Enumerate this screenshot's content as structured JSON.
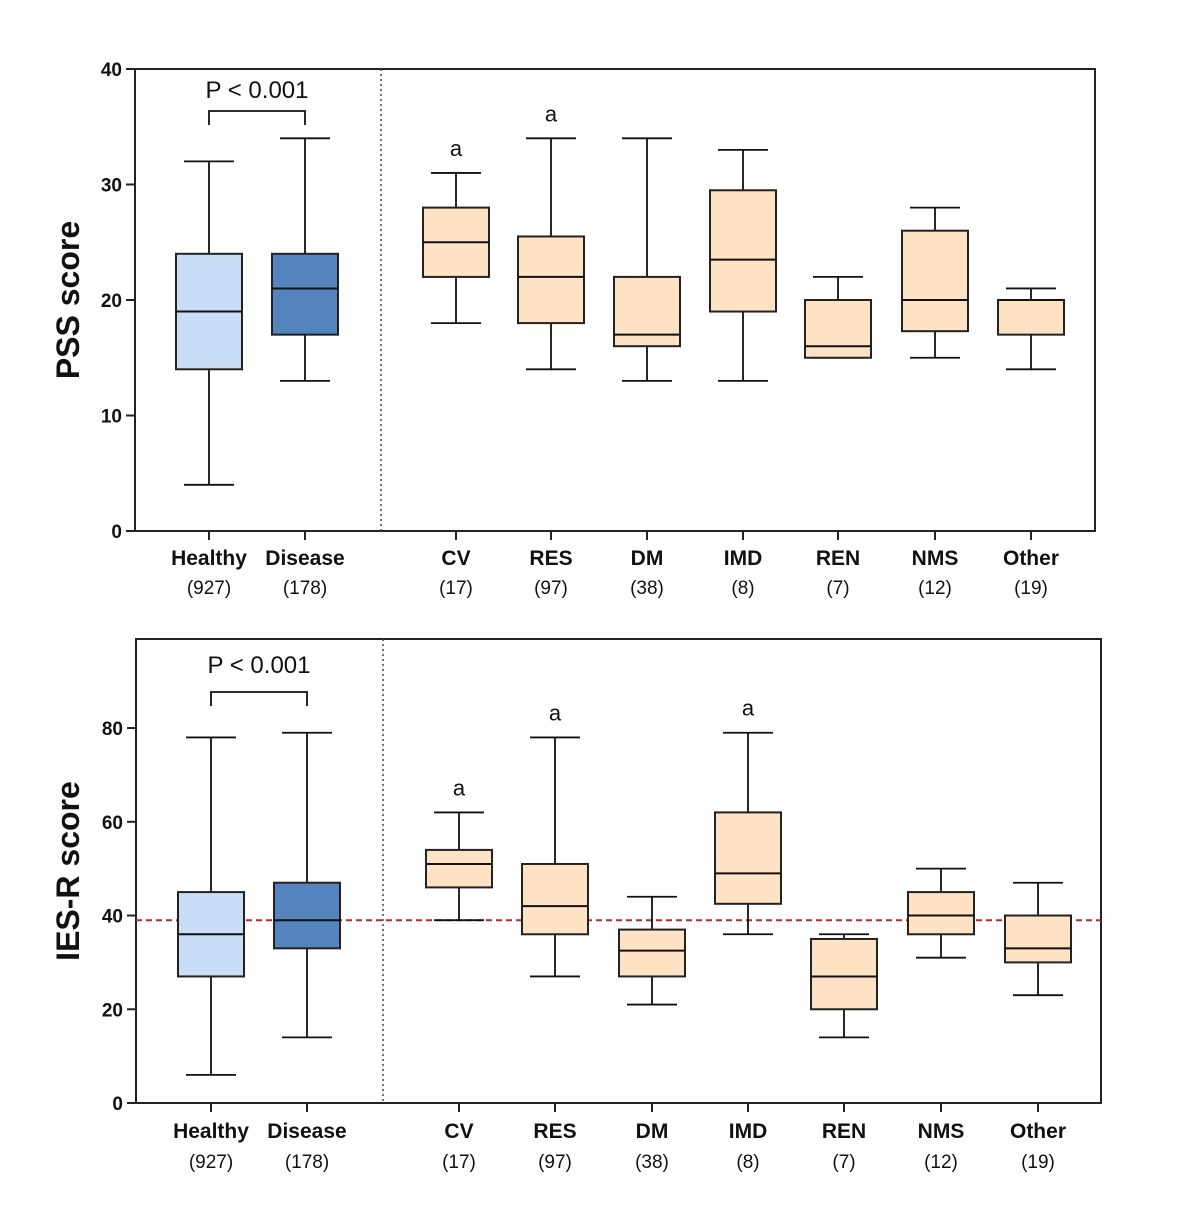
{
  "chart_data": [
    {
      "type": "box",
      "title": "",
      "ylabel": "PSS score",
      "xlabel": "",
      "ylim": [
        0,
        40
      ],
      "yticks": [
        0,
        10,
        20,
        30,
        40
      ],
      "grid": false,
      "comparison": {
        "groups": [
          "Healthy",
          "Disease"
        ],
        "label": "P < 0.001"
      },
      "reference_line": null,
      "categories": [
        {
          "name": "Healthy",
          "n": "(927)",
          "color": "#C9DDF6",
          "min": 4,
          "q1": 14,
          "median": 19,
          "q3": 24,
          "max": 32,
          "sig": ""
        },
        {
          "name": "Disease",
          "n": "(178)",
          "color": "#5483BE",
          "min": 13,
          "q1": 17,
          "median": 21,
          "q3": 24,
          "max": 34,
          "sig": ""
        },
        {
          "name": "CV",
          "n": "(17)",
          "color": "#FFE2C4",
          "min": 18,
          "q1": 22,
          "median": 25,
          "q3": 28,
          "max": 31,
          "sig": "a"
        },
        {
          "name": "RES",
          "n": "(97)",
          "color": "#FFE2C4",
          "min": 14,
          "q1": 18,
          "median": 22,
          "q3": 25.5,
          "max": 34,
          "sig": "a"
        },
        {
          "name": "DM",
          "n": "(38)",
          "color": "#FFE2C4",
          "min": 13,
          "q1": 16,
          "median": 17,
          "q3": 22,
          "max": 34,
          "sig": ""
        },
        {
          "name": "IMD",
          "n": "(8)",
          "color": "#FFE2C4",
          "min": 13,
          "q1": 19,
          "median": 23.5,
          "q3": 29.5,
          "max": 33,
          "sig": ""
        },
        {
          "name": "REN",
          "n": "(7)",
          "color": "#FFE2C4",
          "min": 15,
          "q1": 15,
          "median": 16,
          "q3": 20,
          "max": 22,
          "sig": ""
        },
        {
          "name": "NMS",
          "n": "(12)",
          "color": "#FFE2C4",
          "min": 15,
          "q1": 17.3,
          "median": 20,
          "q3": 26,
          "max": 28,
          "sig": ""
        },
        {
          "name": "Other",
          "n": "(19)",
          "color": "#FFE2C4",
          "min": 14,
          "q1": 17,
          "median": 20,
          "q3": 20,
          "max": 21,
          "sig": ""
        }
      ]
    },
    {
      "type": "box",
      "title": "",
      "ylabel": "IES-R score",
      "xlabel": "",
      "ylim": [
        0,
        99
      ],
      "yticks": [
        0,
        20,
        40,
        60,
        80
      ],
      "grid": false,
      "comparison": {
        "groups": [
          "Healthy",
          "Disease"
        ],
        "label": "P < 0.001"
      },
      "reference_line": {
        "value": 39,
        "style": "dashed",
        "color": "#C0282D"
      },
      "categories": [
        {
          "name": "Healthy",
          "n": "(927)",
          "color": "#C9DDF6",
          "min": 6,
          "q1": 27,
          "median": 36,
          "q3": 45,
          "max": 78,
          "sig": ""
        },
        {
          "name": "Disease",
          "n": "(178)",
          "color": "#5483BE",
          "min": 14,
          "q1": 33,
          "median": 39,
          "q3": 47,
          "max": 79,
          "sig": ""
        },
        {
          "name": "CV",
          "n": "(17)",
          "color": "#FFE2C4",
          "min": 39,
          "q1": 46,
          "median": 51,
          "q3": 54,
          "max": 62,
          "sig": "a"
        },
        {
          "name": "RES",
          "n": "(97)",
          "color": "#FFE2C4",
          "min": 27,
          "q1": 36,
          "median": 42,
          "q3": 51,
          "max": 78,
          "sig": "a"
        },
        {
          "name": "DM",
          "n": "(38)",
          "color": "#FFE2C4",
          "min": 21,
          "q1": 27,
          "median": 32.5,
          "q3": 37,
          "max": 44,
          "sig": ""
        },
        {
          "name": "IMD",
          "n": "(8)",
          "color": "#FFE2C4",
          "min": 36,
          "q1": 42.5,
          "median": 49,
          "q3": 62,
          "max": 79,
          "sig": "a"
        },
        {
          "name": "REN",
          "n": "(7)",
          "color": "#FFE2C4",
          "min": 14,
          "q1": 20,
          "median": 27,
          "q3": 35,
          "max": 36,
          "sig": ""
        },
        {
          "name": "NMS",
          "n": "(12)",
          "color": "#FFE2C4",
          "min": 31,
          "q1": 36,
          "median": 40,
          "q3": 45,
          "max": 50,
          "sig": ""
        },
        {
          "name": "Other",
          "n": "(19)",
          "color": "#FFE2C4",
          "min": 23,
          "q1": 30,
          "median": 33,
          "q3": 40,
          "max": 47,
          "sig": ""
        }
      ]
    }
  ]
}
